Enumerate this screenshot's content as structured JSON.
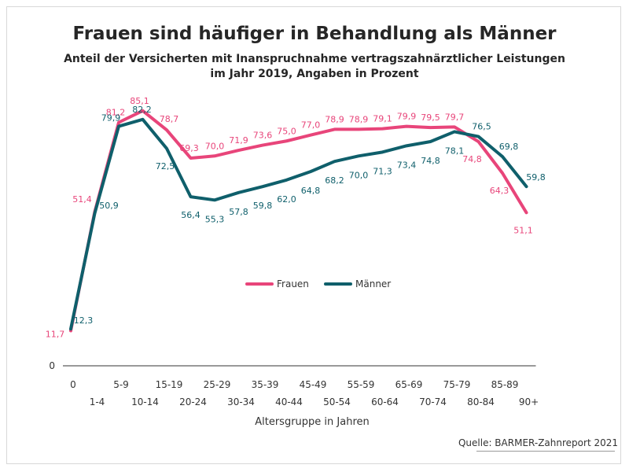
{
  "title": "Frauen sind häufiger in Behandlung als Männer",
  "subtitle_line1": "Anteil der Versicherten mit Inanspruchnahme vertragszahnärztlicher Leistungen",
  "subtitle_line2": "im Jahr 2019, Angaben in Prozent",
  "source": "Quelle: BARMER-Zahnreport 2021",
  "chart_data": {
    "type": "line",
    "categories": [
      "0",
      "1-4",
      "5-9",
      "10-14",
      "15-19",
      "20-24",
      "25-29",
      "30-34",
      "35-39",
      "40-44",
      "45-49",
      "50-54",
      "55-59",
      "60-64",
      "65-69",
      "70-74",
      "75-79",
      "80-84",
      "85-89",
      "90+"
    ],
    "series": [
      {
        "name": "Frauen",
        "color": "#e8457a",
        "values": [
          11.7,
          51.4,
          81.2,
          85.1,
          78.7,
          69.3,
          70.0,
          71.9,
          73.6,
          75.0,
          77.0,
          78.9,
          78.9,
          79.1,
          79.9,
          79.5,
          79.7,
          74.8,
          64.3,
          51.1
        ],
        "labels": [
          "11,7",
          "51,4",
          "81,2",
          "85,1",
          "78,7",
          "69,3",
          "70,0",
          "71,9",
          "73,6",
          "75,0",
          "77,0",
          "78,9",
          "78,9",
          "79,1",
          "79,9",
          "79,5",
          "79,7",
          "74,8",
          "64,3",
          "51,1"
        ]
      },
      {
        "name": "Männer",
        "color": "#0f5f6b",
        "values": [
          12.3,
          50.9,
          79.9,
          82.2,
          72.5,
          56.4,
          55.3,
          57.8,
          59.8,
          62.0,
          64.8,
          68.2,
          70.0,
          71.3,
          73.4,
          74.8,
          78.1,
          76.5,
          69.8,
          59.8
        ],
        "labels": [
          "12,3",
          "50,9",
          "79,9",
          "82,2",
          "72,5",
          "56,4",
          "55,3",
          "57,8",
          "59,8",
          "62,0",
          "64,8",
          "68,2",
          "70,0",
          "71,3",
          "73,4",
          "74,8",
          "78,1",
          "76,5",
          "69,8",
          "59,8"
        ]
      }
    ],
    "xlabel": "Altersgruppe  in Jahren",
    "ylabel": "",
    "ytick_labels": [
      "0"
    ],
    "ylim": [
      0,
      90
    ],
    "grid": false,
    "legend_position": "center"
  }
}
